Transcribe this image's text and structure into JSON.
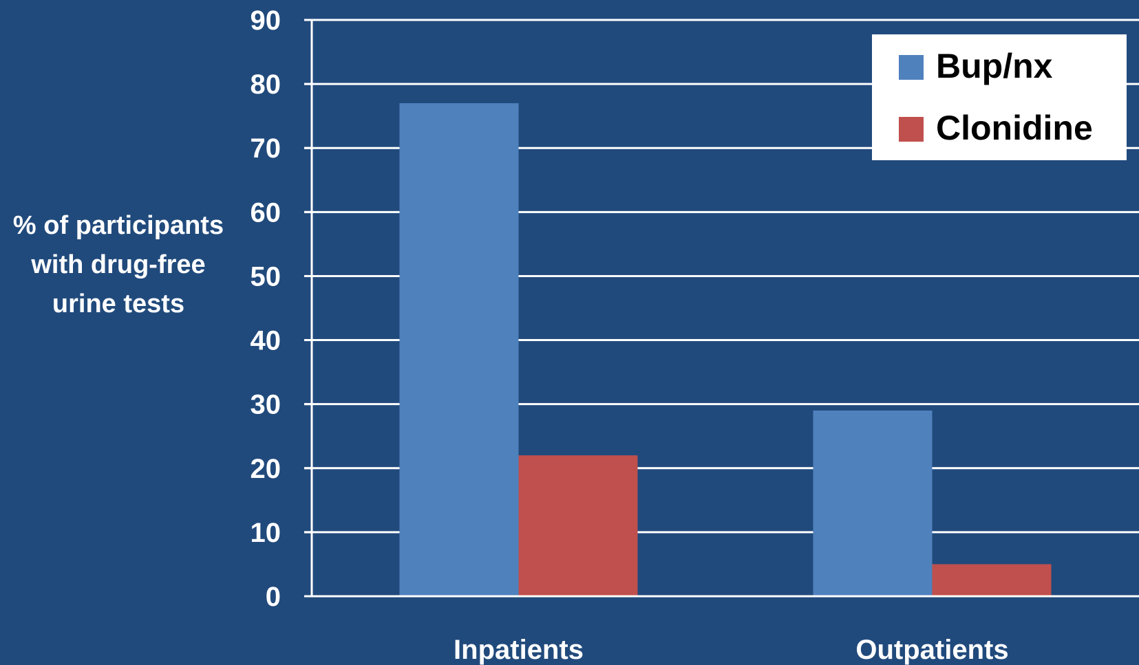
{
  "chart_data": {
    "type": "bar",
    "title": "",
    "ylabel_lines": [
      "%  of participants",
      "with drug-free",
      "urine tests"
    ],
    "xlabel": "",
    "categories": [
      "Inpatients",
      "Outpatients"
    ],
    "series": [
      {
        "name": "Bup/nx",
        "color": "#4f81bd",
        "values": [
          77,
          29
        ]
      },
      {
        "name": "Clonidine",
        "color": "#c0504d",
        "values": [
          22,
          5
        ]
      }
    ],
    "yticks": [
      "0",
      "10",
      "20",
      "30",
      "40",
      "50",
      "60",
      "70",
      "80",
      "90"
    ],
    "ylim": [
      0,
      90
    ],
    "grid": true,
    "legend_position": "top-right",
    "background_color": "#214a7c",
    "gridline_color": "#ffffff",
    "legend_background": "#ffffff"
  }
}
